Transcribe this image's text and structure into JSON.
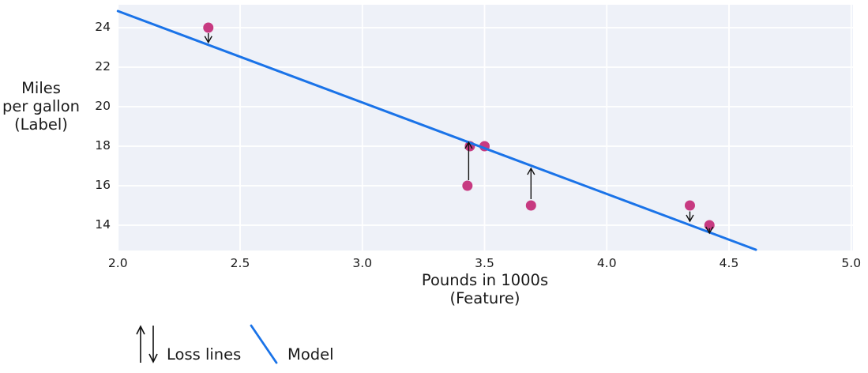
{
  "chart_data": {
    "type": "scatter",
    "title": "",
    "xlabel_lines": [
      "Pounds in 1000s",
      "(Feature)"
    ],
    "ylabel_lines": [
      "Miles",
      "per gallon",
      "(Label)"
    ],
    "xlim": [
      2.0,
      5.0
    ],
    "ylim": [
      12.7,
      25.2
    ],
    "grid": true,
    "x_ticks": [
      {
        "label": "2.0",
        "value": 2.0
      },
      {
        "label": "2.5",
        "value": 2.5
      },
      {
        "label": "3.0",
        "value": 3.0
      },
      {
        "label": "3.5",
        "value": 3.5
      },
      {
        "label": "4.0",
        "value": 4.0
      },
      {
        "label": "4.5",
        "value": 4.5
      },
      {
        "label": "5.0",
        "value": 5.0
      }
    ],
    "y_ticks": [
      {
        "label": "24",
        "value": 24
      },
      {
        "label": "22",
        "value": 22
      },
      {
        "label": "20",
        "value": 20
      },
      {
        "label": "18",
        "value": 18
      },
      {
        "label": "16",
        "value": 16
      },
      {
        "label": "14",
        "value": 14
      }
    ],
    "points": [
      {
        "x": 2.37,
        "y": 24
      },
      {
        "x": 3.44,
        "y": 18
      },
      {
        "x": 3.5,
        "y": 18
      },
      {
        "x": 3.43,
        "y": 16
      },
      {
        "x": 3.69,
        "y": 15
      },
      {
        "x": 4.34,
        "y": 15
      },
      {
        "x": 4.42,
        "y": 14
      }
    ],
    "loss_arrows": [
      {
        "x": 2.37,
        "y_from": 23.72,
        "y_to": 23.25,
        "direction": "down"
      },
      {
        "x": 3.435,
        "y_from": 16.28,
        "y_to": 18.2,
        "direction": "up"
      },
      {
        "x": 3.69,
        "y_from": 15.32,
        "y_to": 16.88,
        "direction": "up"
      },
      {
        "x": 4.34,
        "y_from": 14.7,
        "y_to": 14.2,
        "direction": "down"
      },
      {
        "x": 4.42,
        "y_from": 13.85,
        "y_to": 13.6,
        "direction": "down"
      }
    ],
    "model_line": {
      "x1": 2.0,
      "y1": 24.84,
      "x2": 4.61,
      "y2": 12.76
    },
    "legend": {
      "position": "bottom-left",
      "items": [
        {
          "glyph": "loss-arrows",
          "label": "Loss lines"
        },
        {
          "glyph": "model-line",
          "label": "Model"
        }
      ]
    },
    "colors": {
      "model_line": "#1a73e8",
      "point": "#c73a81",
      "plot_bg": "#eef1f8",
      "grid": "#ffffff",
      "arrow": "#111111",
      "text": "#1a1a1a"
    }
  }
}
